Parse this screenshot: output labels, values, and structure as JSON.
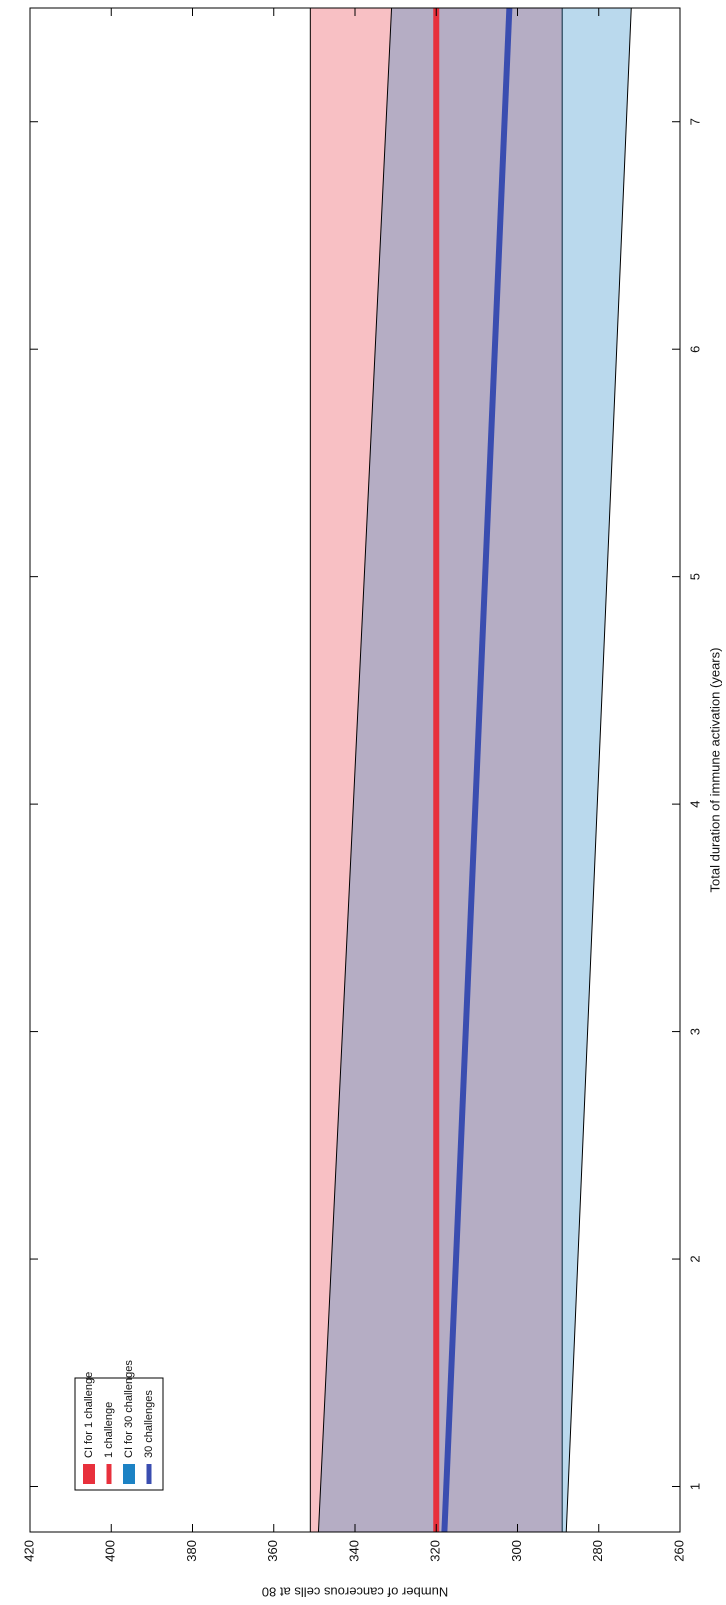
{
  "chart_data": {
    "type": "band-line",
    "x_label": "Total duration of immune activation (years)",
    "y_label": "Number of cancerous cells at 80",
    "x": [
      0.8,
      7.5
    ],
    "xlim": [
      0.8,
      7.5
    ],
    "xticks": [
      1,
      2,
      3,
      4,
      5,
      6,
      7
    ],
    "ylim": [
      260,
      420
    ],
    "yticks": [
      260,
      280,
      300,
      320,
      340,
      360,
      380,
      400,
      420
    ],
    "legend": "upper left",
    "series": [
      {
        "name": "CI for 1 challenge",
        "kind": "band",
        "color": "#e8303c",
        "lower": [
          289,
          289
        ],
        "upper": [
          351,
          351
        ]
      },
      {
        "name": "1 challenge",
        "kind": "line",
        "color": "#e8303c",
        "values": [
          320,
          320
        ]
      },
      {
        "name": "CI for 30 challenges",
        "kind": "band",
        "color": "#1c82c4",
        "lower": [
          288,
          272
        ],
        "upper": [
          349,
          331
        ]
      },
      {
        "name": "30 challenges",
        "kind": "line",
        "color": "#3a4db0",
        "values": [
          318,
          302
        ]
      }
    ]
  }
}
